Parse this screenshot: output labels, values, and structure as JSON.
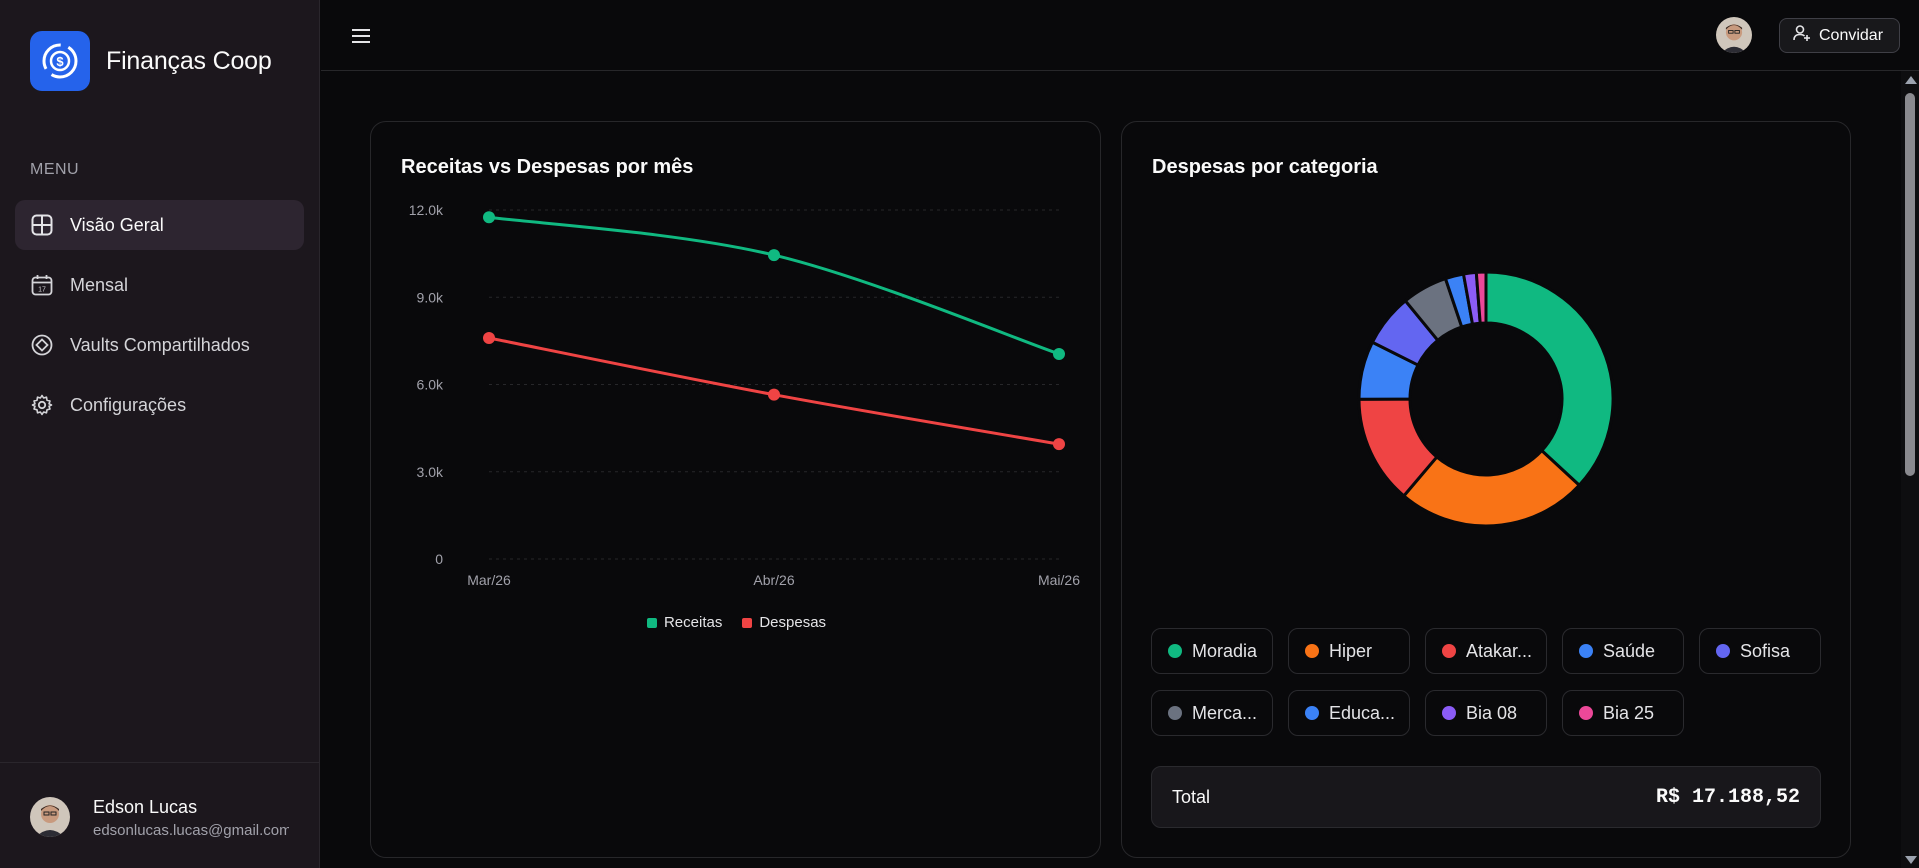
{
  "brand": {
    "name": "Finanças Coop",
    "logo_icon": "coin-cycle-icon",
    "logo_color": "#2563eb"
  },
  "sidebar": {
    "menu_label": "MENU",
    "items": [
      {
        "label": "Visão Geral",
        "icon": "layout-grid-icon",
        "active": true
      },
      {
        "label": "Mensal",
        "icon": "calendar-icon",
        "active": false
      },
      {
        "label": "Vaults Compartilhados",
        "icon": "diamond-icon",
        "active": false
      },
      {
        "label": "Configurações",
        "icon": "gear-icon",
        "active": false
      }
    ]
  },
  "user": {
    "name": "Edson Lucas",
    "email": "edsonlucas.lucas@gmail.com"
  },
  "topbar": {
    "invite_label": "Convidar",
    "invite_icon": "user-plus-icon",
    "menu_icon": "hamburger-icon"
  },
  "cards": {
    "line": {
      "title": "Receitas vs Despesas por mês"
    },
    "donut": {
      "title": "Despesas por categoria"
    }
  },
  "chart_data": [
    {
      "type": "line",
      "title": "Receitas vs Despesas por mês",
      "categories": [
        "Mar/26",
        "Abr/26",
        "Mai/26"
      ],
      "y_ticks": [
        "0",
        "3.0k",
        "6.0k",
        "9.0k",
        "12.0k"
      ],
      "ylim": [
        0,
        12000
      ],
      "grid": true,
      "legend_position": "bottom",
      "series": [
        {
          "name": "Receitas",
          "color": "#10b981",
          "values": [
            11750,
            10450,
            7050
          ]
        },
        {
          "name": "Despesas",
          "color": "#ef4444",
          "values": [
            7600,
            5650,
            3950
          ]
        }
      ]
    },
    {
      "type": "pie",
      "title": "Despesas por categoria",
      "donut": true,
      "slices": [
        {
          "label": "Moradia",
          "color": "#10b981",
          "value": 36.4
        },
        {
          "label": "Hiper",
          "color": "#f97316",
          "value": 24.0
        },
        {
          "label": "Atakar...",
          "color": "#ef4444",
          "value": 13.6
        },
        {
          "label": "Saúde",
          "color": "#3b82f6",
          "value": 7.3
        },
        {
          "label": "Sofisa",
          "color": "#6366f1",
          "value": 6.6
        },
        {
          "label": "Merca...",
          "color": "#6b7280",
          "value": 5.7
        },
        {
          "label": "Educa...",
          "color": "#3b82f6",
          "value": 2.3
        },
        {
          "label": "Bia 08",
          "color": "#8b5cf6",
          "value": 1.6
        },
        {
          "label": "Bia 25",
          "color": "#ec4899",
          "value": 1.2
        }
      ],
      "total_label": "Total",
      "total_value": "R$ 17.188,52"
    }
  ]
}
